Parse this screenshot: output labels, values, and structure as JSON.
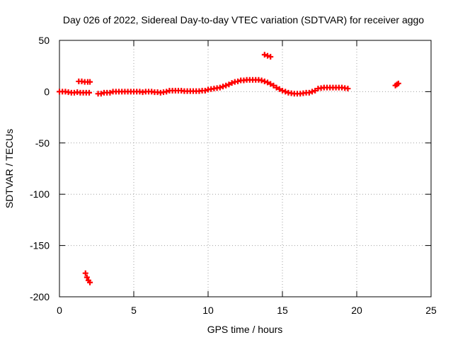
{
  "chart_data": {
    "type": "scatter",
    "title": "Day 026 of 2022, Sidereal Day-to-day VTEC variation (SDTVAR) for receiver aggo",
    "xlabel": "GPS time / hours",
    "ylabel": "SDTVAR / TECUs",
    "xlim": [
      0,
      25
    ],
    "ylim": [
      -200,
      50
    ],
    "xticks": [
      0,
      5,
      10,
      15,
      20,
      25
    ],
    "yticks": [
      -200,
      -150,
      -100,
      -50,
      0,
      50
    ],
    "grid": true,
    "marker": "+",
    "marker_color": "#ff0000",
    "series": [
      {
        "name": "SDTVAR",
        "x": [
          0.0,
          0.2,
          0.4,
          0.6,
          0.8,
          1.0,
          1.2,
          1.4,
          1.6,
          1.8,
          2.0,
          1.3,
          1.5,
          1.7,
          1.9,
          2.05,
          1.75,
          1.85,
          1.95,
          2.05,
          2.6,
          2.8,
          3.0,
          3.2,
          3.4,
          3.6,
          3.8,
          4.0,
          4.2,
          4.4,
          4.6,
          4.8,
          5.0,
          5.2,
          5.4,
          5.6,
          5.8,
          6.0,
          6.2,
          6.4,
          6.6,
          6.8,
          7.0,
          7.2,
          7.4,
          7.6,
          7.8,
          8.0,
          8.2,
          8.4,
          8.6,
          8.8,
          9.0,
          9.2,
          9.4,
          9.6,
          9.8,
          10.0,
          10.2,
          10.4,
          10.6,
          10.8,
          11.0,
          11.2,
          11.4,
          11.6,
          11.8,
          12.0,
          12.2,
          12.4,
          12.6,
          12.8,
          13.0,
          13.2,
          13.4,
          13.6,
          13.8,
          14.0,
          14.2,
          14.4,
          14.6,
          14.8,
          13.8,
          14.0,
          14.2,
          15.0,
          15.2,
          15.4,
          15.6,
          15.8,
          16.0,
          16.2,
          16.4,
          16.6,
          16.8,
          17.0,
          17.2,
          17.4,
          17.6,
          17.8,
          18.0,
          18.2,
          18.4,
          18.6,
          18.8,
          19.0,
          19.2,
          19.4,
          22.6,
          22.7,
          22.8
        ],
        "y": [
          0,
          0,
          0,
          -0.5,
          -1,
          -1,
          -0.5,
          -1,
          -1,
          -1,
          -1,
          10,
          10,
          9.5,
          9.5,
          9.5,
          -177,
          -181,
          -184,
          -186,
          -2,
          -2,
          -1,
          -1,
          -1,
          0,
          0,
          0,
          0,
          0,
          0,
          0,
          0,
          0,
          0,
          -0.5,
          0,
          0,
          0,
          -0.5,
          -0.5,
          -1,
          -0.5,
          0,
          1,
          1,
          1,
          1,
          1,
          0.5,
          0.5,
          0.5,
          0.5,
          0.5,
          0.5,
          1,
          1,
          2,
          2.5,
          3,
          3.5,
          4,
          5,
          6,
          7,
          8.5,
          9.5,
          10,
          11,
          11,
          11.5,
          11.5,
          11.5,
          11.5,
          11.5,
          11,
          10,
          9,
          7.5,
          6,
          4,
          2.5,
          36,
          35,
          34,
          1,
          0,
          -1,
          -1.5,
          -2,
          -2,
          -2,
          -1.5,
          -1,
          -1,
          0,
          1,
          3,
          3.5,
          4,
          4,
          4,
          4,
          4,
          4,
          4,
          3.5,
          3,
          6,
          7,
          8
        ]
      }
    ]
  }
}
